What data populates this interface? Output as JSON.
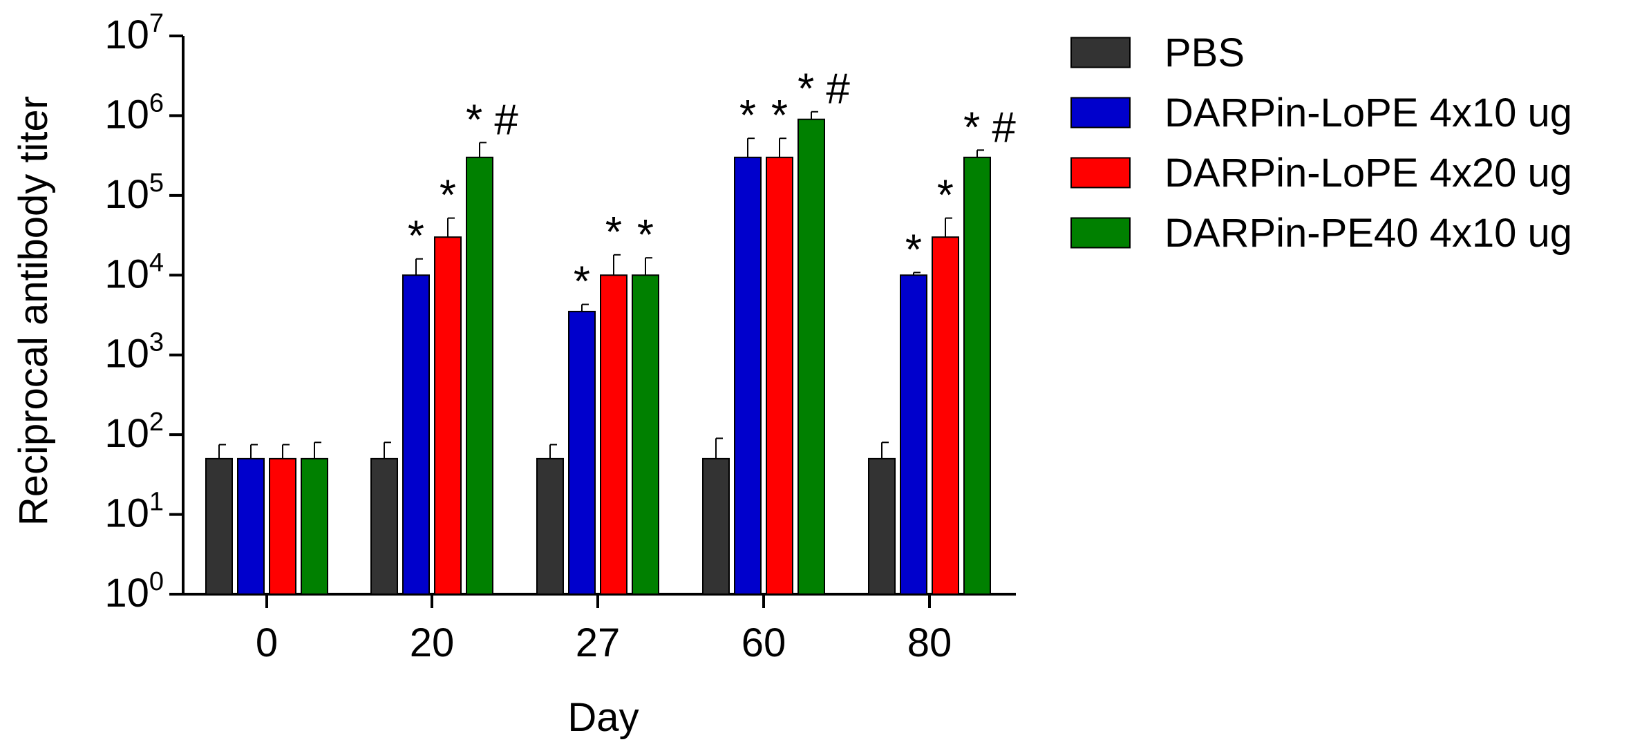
{
  "chart_data": {
    "type": "bar",
    "title": "",
    "xlabel": "Day",
    "ylabel": "Reciprocal antibody titer",
    "yscale": "log10",
    "ylim": [
      1,
      10000000
    ],
    "yticks": [
      {
        "base": "10",
        "exp": "0",
        "value": 1
      },
      {
        "base": "10",
        "exp": "1",
        "value": 10
      },
      {
        "base": "10",
        "exp": "2",
        "value": 100
      },
      {
        "base": "10",
        "exp": "3",
        "value": 1000
      },
      {
        "base": "10",
        "exp": "4",
        "value": 10000
      },
      {
        "base": "10",
        "exp": "5",
        "value": 100000
      },
      {
        "base": "10",
        "exp": "6",
        "value": 1000000
      },
      {
        "base": "10",
        "exp": "7",
        "value": 10000000
      }
    ],
    "categories": [
      "0",
      "20",
      "27",
      "60",
      "80"
    ],
    "legend_position": "right",
    "series": [
      {
        "name": "PBS",
        "color": "#333333",
        "values": [
          50,
          50,
          50,
          50,
          50
        ],
        "error_upper": [
          75,
          80,
          75,
          90,
          80
        ],
        "annotations": [
          "",
          "",
          "",
          "",
          ""
        ]
      },
      {
        "name": "DARPin-LoPE 4x10 ug",
        "color": "#0000cc",
        "values": [
          50,
          10000,
          3500,
          300000,
          10000
        ],
        "error_upper": [
          75,
          16000,
          4300,
          520000,
          10800
        ],
        "annotations": [
          "",
          "*",
          "*",
          "*",
          "*"
        ]
      },
      {
        "name": "DARPin-LoPE 4x20 ug",
        "color": "#ff0000",
        "values": [
          50,
          30000,
          10000,
          300000,
          30000
        ],
        "error_upper": [
          75,
          52000,
          18000,
          520000,
          52000
        ],
        "annotations": [
          "",
          "*",
          "*",
          "*",
          "*"
        ]
      },
      {
        "name": "DARPin-PE40 4x10 ug",
        "color": "#008000",
        "values": [
          50,
          300000,
          10000,
          900000,
          300000
        ],
        "error_upper": [
          80,
          460000,
          16500,
          1120000,
          370000
        ],
        "annotations": [
          "",
          "*#",
          "*",
          "*#",
          "*#"
        ]
      }
    ]
  }
}
